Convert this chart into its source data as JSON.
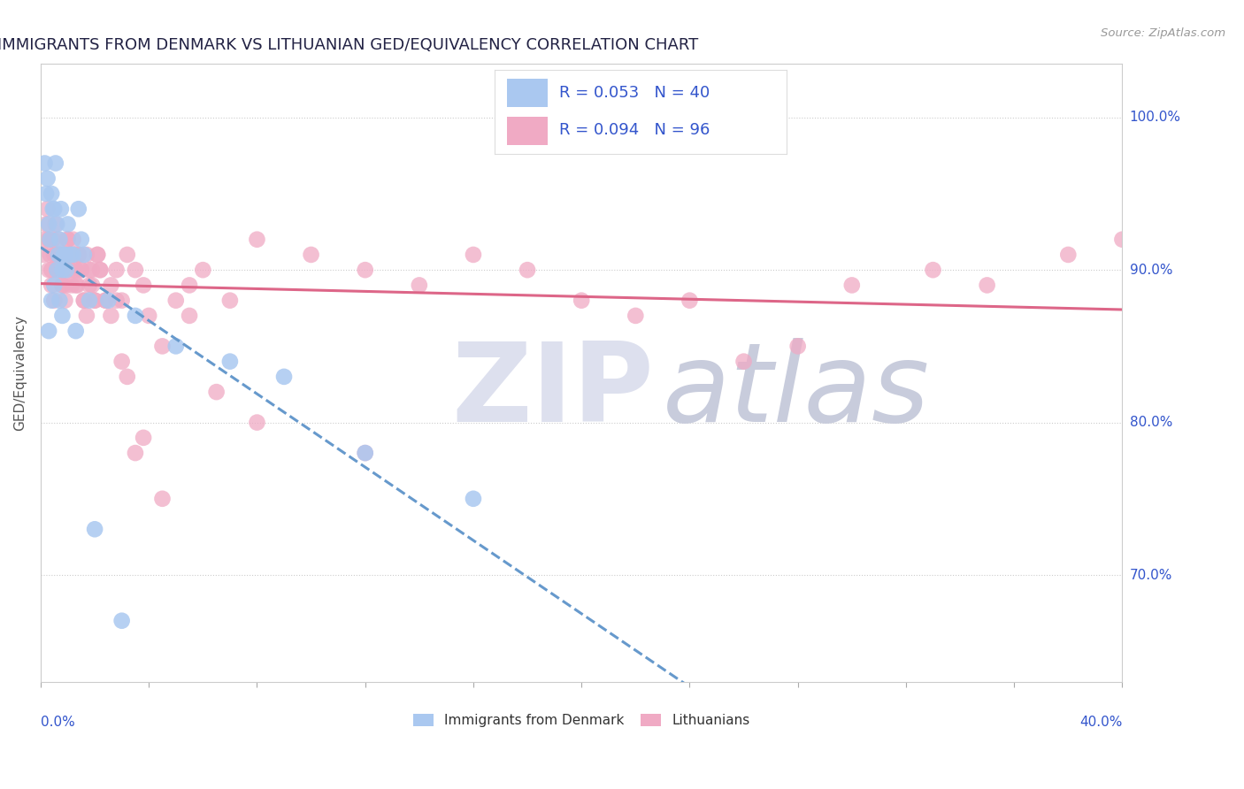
{
  "title": "IMMIGRANTS FROM DENMARK VS LITHUANIAN GED/EQUIVALENCY CORRELATION CHART",
  "source": "Source: ZipAtlas.com",
  "ylabel": "GED/Equivalency",
  "ytick_vals": [
    70.0,
    80.0,
    90.0,
    100.0
  ],
  "ytick_labels": [
    "70.0%",
    "80.0%",
    "90.0%",
    "100.0%"
  ],
  "xlim": [
    0.0,
    40.0
  ],
  "ylim": [
    63.0,
    103.5
  ],
  "legend_blue_r": "0.053",
  "legend_blue_n": "40",
  "legend_pink_r": "0.094",
  "legend_pink_n": "96",
  "blue_color": "#aac8f0",
  "pink_color": "#f0aac4",
  "blue_line_color": "#6699cc",
  "pink_line_color": "#dd6688",
  "title_color": "#222244",
  "axis_label_color": "#3355cc",
  "blue_scatter_x": [
    0.15,
    0.2,
    0.25,
    0.3,
    0.35,
    0.4,
    0.45,
    0.5,
    0.55,
    0.6,
    0.65,
    0.7,
    0.75,
    0.8,
    0.85,
    0.9,
    0.95,
    1.0,
    1.1,
    1.2,
    1.4,
    1.6,
    1.8,
    2.5,
    3.5,
    5.0,
    7.0,
    9.0,
    12.0,
    16.0,
    1.5,
    0.4,
    0.3,
    0.5,
    0.6,
    0.7,
    0.8,
    1.3,
    2.0,
    3.0
  ],
  "blue_scatter_y": [
    97,
    95,
    96,
    93,
    92,
    95,
    94,
    94,
    97,
    93,
    91,
    92,
    94,
    90,
    91,
    91,
    90,
    93,
    91,
    91,
    94,
    91,
    88,
    88,
    87,
    85,
    84,
    83,
    78,
    75,
    92,
    88,
    86,
    89,
    90,
    88,
    87,
    86,
    73,
    67
  ],
  "pink_scatter_x": [
    0.1,
    0.15,
    0.2,
    0.25,
    0.3,
    0.35,
    0.4,
    0.45,
    0.5,
    0.55,
    0.6,
    0.65,
    0.7,
    0.75,
    0.8,
    0.85,
    0.9,
    0.95,
    1.0,
    1.05,
    1.1,
    1.15,
    1.2,
    1.25,
    1.3,
    1.35,
    1.4,
    1.5,
    1.6,
    1.7,
    1.8,
    1.9,
    2.0,
    2.1,
    2.2,
    2.4,
    2.6,
    2.8,
    3.0,
    3.2,
    3.5,
    3.8,
    4.0,
    4.5,
    5.0,
    5.5,
    6.0,
    7.0,
    8.0,
    10.0,
    12.0,
    14.0,
    16.0,
    18.0,
    20.0,
    22.0,
    24.0,
    26.0,
    28.0,
    30.0,
    33.0,
    35.0,
    38.0,
    40.0,
    0.3,
    0.4,
    0.5,
    0.6,
    0.7,
    0.8,
    0.9,
    1.0,
    1.1,
    1.2,
    1.3,
    1.4,
    1.5,
    1.6,
    1.7,
    1.8,
    1.9,
    2.0,
    2.1,
    2.2,
    2.4,
    2.6,
    2.8,
    3.0,
    3.2,
    3.5,
    3.8,
    4.5,
    5.5,
    6.5,
    8.0,
    12.0
  ],
  "pink_scatter_y": [
    91,
    92,
    93,
    94,
    92,
    91,
    90,
    92,
    91,
    93,
    90,
    92,
    91,
    90,
    89,
    91,
    90,
    89,
    92,
    91,
    90,
    89,
    92,
    91,
    90,
    89,
    91,
    90,
    88,
    91,
    90,
    89,
    88,
    91,
    90,
    88,
    89,
    90,
    88,
    91,
    90,
    89,
    87,
    85,
    88,
    89,
    90,
    88,
    92,
    91,
    90,
    89,
    91,
    90,
    88,
    87,
    88,
    84,
    85,
    89,
    90,
    89,
    91,
    92,
    90,
    89,
    88,
    91,
    90,
    89,
    88,
    92,
    91,
    90,
    89,
    91,
    90,
    88,
    87,
    89,
    90,
    88,
    91,
    90,
    88,
    87,
    88,
    84,
    83,
    78,
    79,
    75,
    87,
    82,
    80,
    78
  ]
}
